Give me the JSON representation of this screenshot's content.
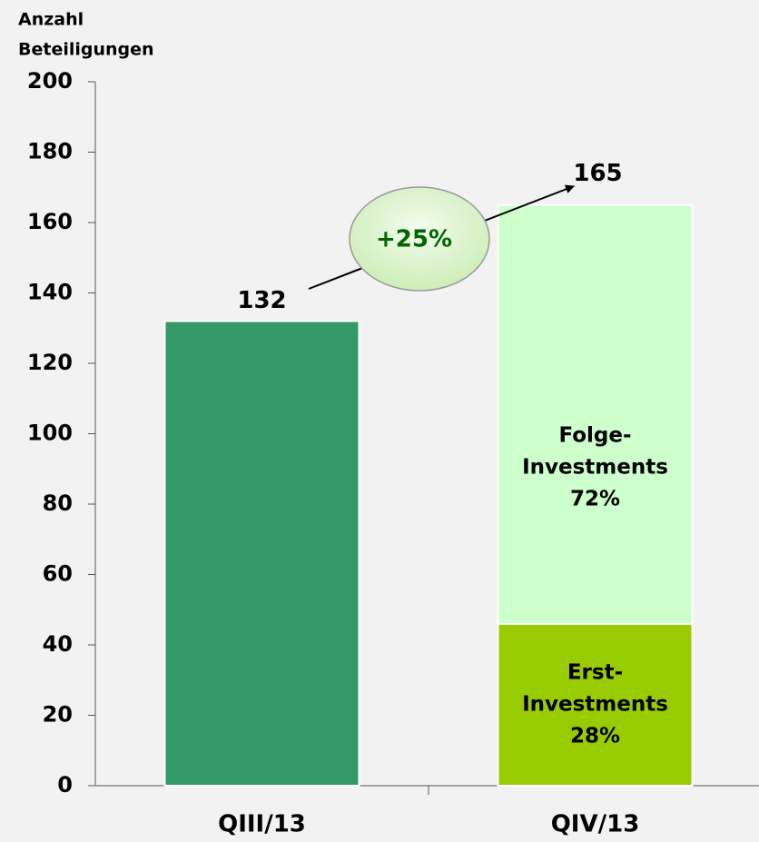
{
  "chart_data": {
    "type": "stacked_bar",
    "ylabel_lines": [
      "Anzahl",
      "Beteiligungen"
    ],
    "categories": [
      "QIII/13",
      "QIV/13"
    ],
    "series": [
      {
        "color": "#339966",
        "values": [
          132,
          null
        ]
      },
      {
        "label_lines": [
          "Erst-",
          "Investments"
        ],
        "share_label": "28%",
        "color": "#99cc00",
        "values": [
          null,
          46
        ]
      },
      {
        "label_lines": [
          "Folge-",
          "Investments"
        ],
        "share_label": "72%",
        "color": "#ccffcc",
        "values": [
          null,
          119
        ]
      }
    ],
    "totals": [
      132,
      165
    ],
    "annotation": {
      "text": "+25%",
      "color": "#006600"
    },
    "ylim": [
      0,
      200
    ],
    "yticks": [
      0,
      20,
      40,
      60,
      80,
      100,
      120,
      140,
      160,
      180,
      200
    ]
  }
}
